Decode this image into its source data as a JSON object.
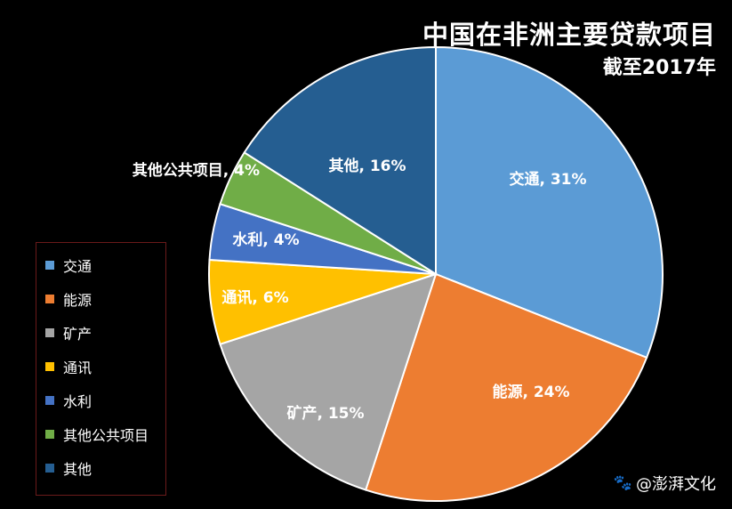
{
  "watermark": {
    "icon": "paw-icon",
    "text": "@澎湃文化"
  },
  "chart_data": {
    "type": "pie",
    "title": "中国在非洲主要贷款项目",
    "subtitle": "截至2017年",
    "legend_placement": "left",
    "slices": [
      {
        "name": "交通",
        "value": 31,
        "label": "交通, 31%",
        "color": "#5b9bd5"
      },
      {
        "name": "能源",
        "value": 24,
        "label": "能源, 24%",
        "color": "#ed7d31"
      },
      {
        "name": "矿产",
        "value": 15,
        "label": "矿产, 15%",
        "color": "#a5a5a5"
      },
      {
        "name": "通讯",
        "value": 6,
        "label": "通讯, 6%",
        "color": "#ffc000"
      },
      {
        "name": "水利",
        "value": 4,
        "label": "水利, 4%",
        "color": "#4472c4"
      },
      {
        "name": "其他公共项目",
        "value": 4,
        "label": "其他公共项目, 4%",
        "color": "#70ad47"
      },
      {
        "name": "其他",
        "value": 16,
        "label": "其他, 16%",
        "color": "#255e91"
      }
    ]
  }
}
